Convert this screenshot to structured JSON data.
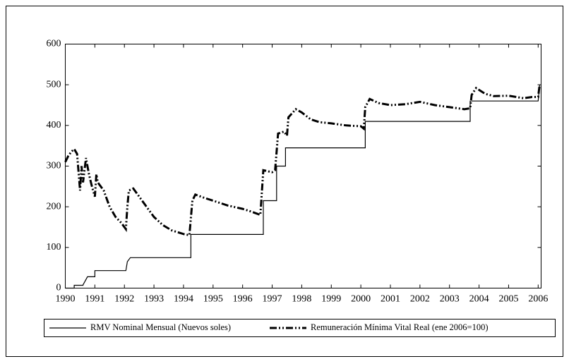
{
  "chart_data": {
    "type": "line",
    "xlim": [
      1990,
      2006.1
    ],
    "xticks": [
      1990,
      1991,
      1992,
      1993,
      1994,
      1995,
      1996,
      1997,
      1998,
      1999,
      2000,
      2001,
      2002,
      2003,
      2004,
      2005,
      2006
    ],
    "ylim": [
      0,
      600
    ],
    "yticks": [
      0,
      100,
      200,
      300,
      400,
      500,
      600
    ],
    "series": [
      {
        "name": "RMV Nominal Mensual (Nuevos soles)",
        "color": "#000000",
        "style": "solid",
        "x": [
          1990.0,
          1990.3,
          1990.3,
          1990.6,
          1990.6,
          1990.75,
          1990.75,
          1991.0,
          1991.0,
          1992.05,
          1992.1,
          1992.2,
          1994.25,
          1994.25,
          1996.7,
          1996.7,
          1997.15,
          1997.15,
          1997.45,
          1997.45,
          2000.15,
          2000.15,
          2003.7,
          2003.7,
          2006.0,
          2006.05
        ],
        "values": [
          0,
          0,
          7,
          7,
          8,
          28,
          28,
          28,
          43,
          43,
          65,
          75,
          75,
          132,
          132,
          215,
          215,
          300,
          300,
          345,
          345,
          410,
          410,
          460,
          460,
          500
        ]
      },
      {
        "name": "Remuneración Mínima Vital Real (ene 2006=100)",
        "color": "#000000",
        "style": "dashdot",
        "x": [
          1990.0,
          1990.1,
          1990.2,
          1990.3,
          1990.4,
          1990.5,
          1990.55,
          1990.6,
          1990.7,
          1990.8,
          1990.9,
          1991.0,
          1991.05,
          1991.1,
          1991.3,
          1991.5,
          1991.7,
          1991.9,
          1992.0,
          1992.05,
          1992.1,
          1992.15,
          1992.3,
          1992.5,
          1992.8,
          1993.0,
          1993.3,
          1993.6,
          1994.0,
          1994.2,
          1994.3,
          1994.4,
          1994.7,
          1995.0,
          1995.5,
          1996.0,
          1996.3,
          1996.6,
          1996.7,
          1997.0,
          1997.1,
          1997.2,
          1997.4,
          1997.5,
          1997.55,
          1997.8,
          1998.0,
          1998.3,
          1998.6,
          1999.0,
          1999.5,
          2000.0,
          2000.1,
          2000.15,
          2000.3,
          2000.6,
          2001.0,
          2001.5,
          2002.0,
          2002.5,
          2003.0,
          2003.5,
          2003.7,
          2003.75,
          2003.9,
          2004.2,
          2004.5,
          2005.0,
          2005.5,
          2005.8,
          2006.0,
          2006.05
        ],
        "values": [
          310,
          325,
          335,
          342,
          330,
          240,
          300,
          260,
          320,
          280,
          250,
          225,
          280,
          260,
          240,
          200,
          175,
          160,
          150,
          145,
          200,
          240,
          245,
          225,
          195,
          175,
          155,
          142,
          133,
          130,
          215,
          230,
          222,
          215,
          203,
          195,
          188,
          180,
          290,
          285,
          290,
          380,
          385,
          375,
          420,
          440,
          432,
          415,
          408,
          405,
          400,
          398,
          392,
          445,
          465,
          455,
          450,
          452,
          458,
          450,
          445,
          440,
          442,
          475,
          492,
          478,
          472,
          473,
          467,
          470,
          470,
          500
        ]
      }
    ]
  }
}
